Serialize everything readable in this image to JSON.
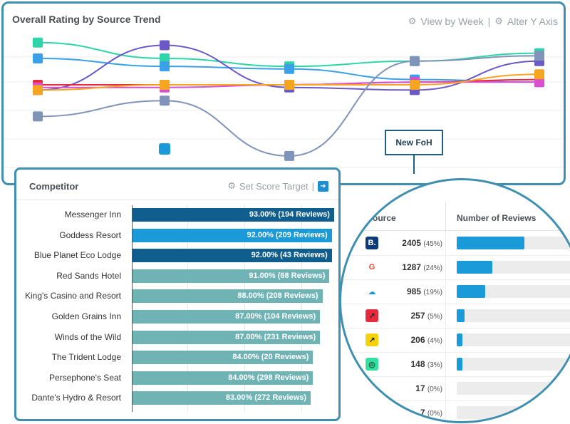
{
  "trend": {
    "title": "Overall Rating by Source Trend",
    "view_by_week": "View by Week",
    "alter_y_axis": "Alter Y Axis",
    "annotation": "New FoH"
  },
  "competitor": {
    "title": "Competitor",
    "set_score_target": "Set Score Target",
    "rows": [
      {
        "name": "Messenger Inn",
        "label": "93.00% (194 Reviews)",
        "value": 93.0,
        "color": "#0f5e8e"
      },
      {
        "name": "Goddess Resort",
        "label": "92.00% (209 Reviews)",
        "value": 92.0,
        "color": "#1a9ad8"
      },
      {
        "name": "Blue Planet Eco Lodge",
        "label": "92.00% (43 Reviews)",
        "value": 92.0,
        "color": "#0f5e8e"
      },
      {
        "name": "Red Sands Hotel",
        "label": "91.00% (68 Reviews)",
        "value": 91.0,
        "color": "#6fb3b5"
      },
      {
        "name": "King's Casino and Resort",
        "label": "88.00% (208 Reviews)",
        "value": 88.0,
        "color": "#6fb3b5"
      },
      {
        "name": "Golden Grains Inn",
        "label": "87.00% (104 Reviews)",
        "value": 87.0,
        "color": "#6fb3b5"
      },
      {
        "name": "Winds of the Wild",
        "label": "87.00% (231 Reviews)",
        "value": 87.0,
        "color": "#6fb3b5"
      },
      {
        "name": "The Trident Lodge",
        "label": "84.00% (20 Reviews)",
        "value": 84.0,
        "color": "#6fb3b5"
      },
      {
        "name": "Persephone's Seat",
        "label": "84.00% (298 Reviews)",
        "value": 84.0,
        "color": "#6fb3b5"
      },
      {
        "name": "Dante's Hydro & Resort",
        "label": "83.00% (272 Reviews)",
        "value": 83.0,
        "color": "#6fb3b5"
      }
    ]
  },
  "sources": {
    "col_source": "Source",
    "col_reviews": "Number of Reviews",
    "rows": [
      {
        "icon": "booking-icon",
        "glyph": "B.",
        "bg": "#0d3b7a",
        "fg": "#ffffff",
        "count": "2405",
        "pct": "(45%)",
        "fill": 0.45
      },
      {
        "icon": "google-icon",
        "glyph": "G",
        "bg": "#ffffff",
        "fg": "#ea4335",
        "count": "1287",
        "pct": "(24%)",
        "fill": 0.24
      },
      {
        "icon": "cloud-check-icon",
        "glyph": "☁",
        "bg": "#ffffff",
        "fg": "#1a9ad8",
        "count": "985",
        "pct": "(19%)",
        "fill": 0.19
      },
      {
        "icon": "red-arrow-icon",
        "glyph": "↗",
        "bg": "#e8283c",
        "fg": "#222222",
        "count": "257",
        "pct": "(5%)",
        "fill": 0.05
      },
      {
        "icon": "yellow-arrow-icon",
        "glyph": "↗",
        "bg": "#f5d20a",
        "fg": "#222222",
        "count": "206",
        "pct": "(4%)",
        "fill": 0.04
      },
      {
        "icon": "tripadvisor-icon",
        "glyph": "◎",
        "bg": "#34e0a1",
        "fg": "#000000",
        "count": "148",
        "pct": "(3%)",
        "fill": 0.03
      },
      {
        "icon": "blue-swirl-icon",
        "glyph": "↻",
        "bg": "#ffffff",
        "fg": "#1a6fd0",
        "count": "17",
        "pct": "(0%)",
        "fill": 0.0
      },
      {
        "icon": "unknown-source-icon",
        "glyph": "",
        "bg": "#ffffff",
        "fg": "#333333",
        "count": "7",
        "pct": "(0%)",
        "fill": 0.0
      }
    ]
  },
  "chart_data": {
    "type": "line",
    "title": "Overall Rating by Source Trend",
    "xlabel": "",
    "ylabel": "",
    "grid": true,
    "x": [
      1,
      2,
      3,
      4,
      5
    ],
    "series": [
      {
        "color": "#2ed5a8",
        "values": [
          86,
          80,
          77,
          79,
          82
        ]
      },
      {
        "color": "#3aa0e8",
        "values": [
          80,
          77,
          76,
          72,
          71
        ]
      },
      {
        "color": "#6b59c8",
        "values": [
          68,
          85,
          69,
          68,
          79
        ]
      },
      {
        "color": "#e8283c",
        "values": [
          70,
          70,
          70,
          71,
          72
        ]
      },
      {
        "color": "#d94fd0",
        "values": [
          69,
          69,
          70,
          71,
          71
        ]
      },
      {
        "color": "#f5a520",
        "values": [
          68,
          70,
          70,
          70,
          74
        ]
      },
      {
        "color": "#7f94b8",
        "values": [
          58,
          64,
          43,
          79,
          81
        ]
      }
    ]
  }
}
